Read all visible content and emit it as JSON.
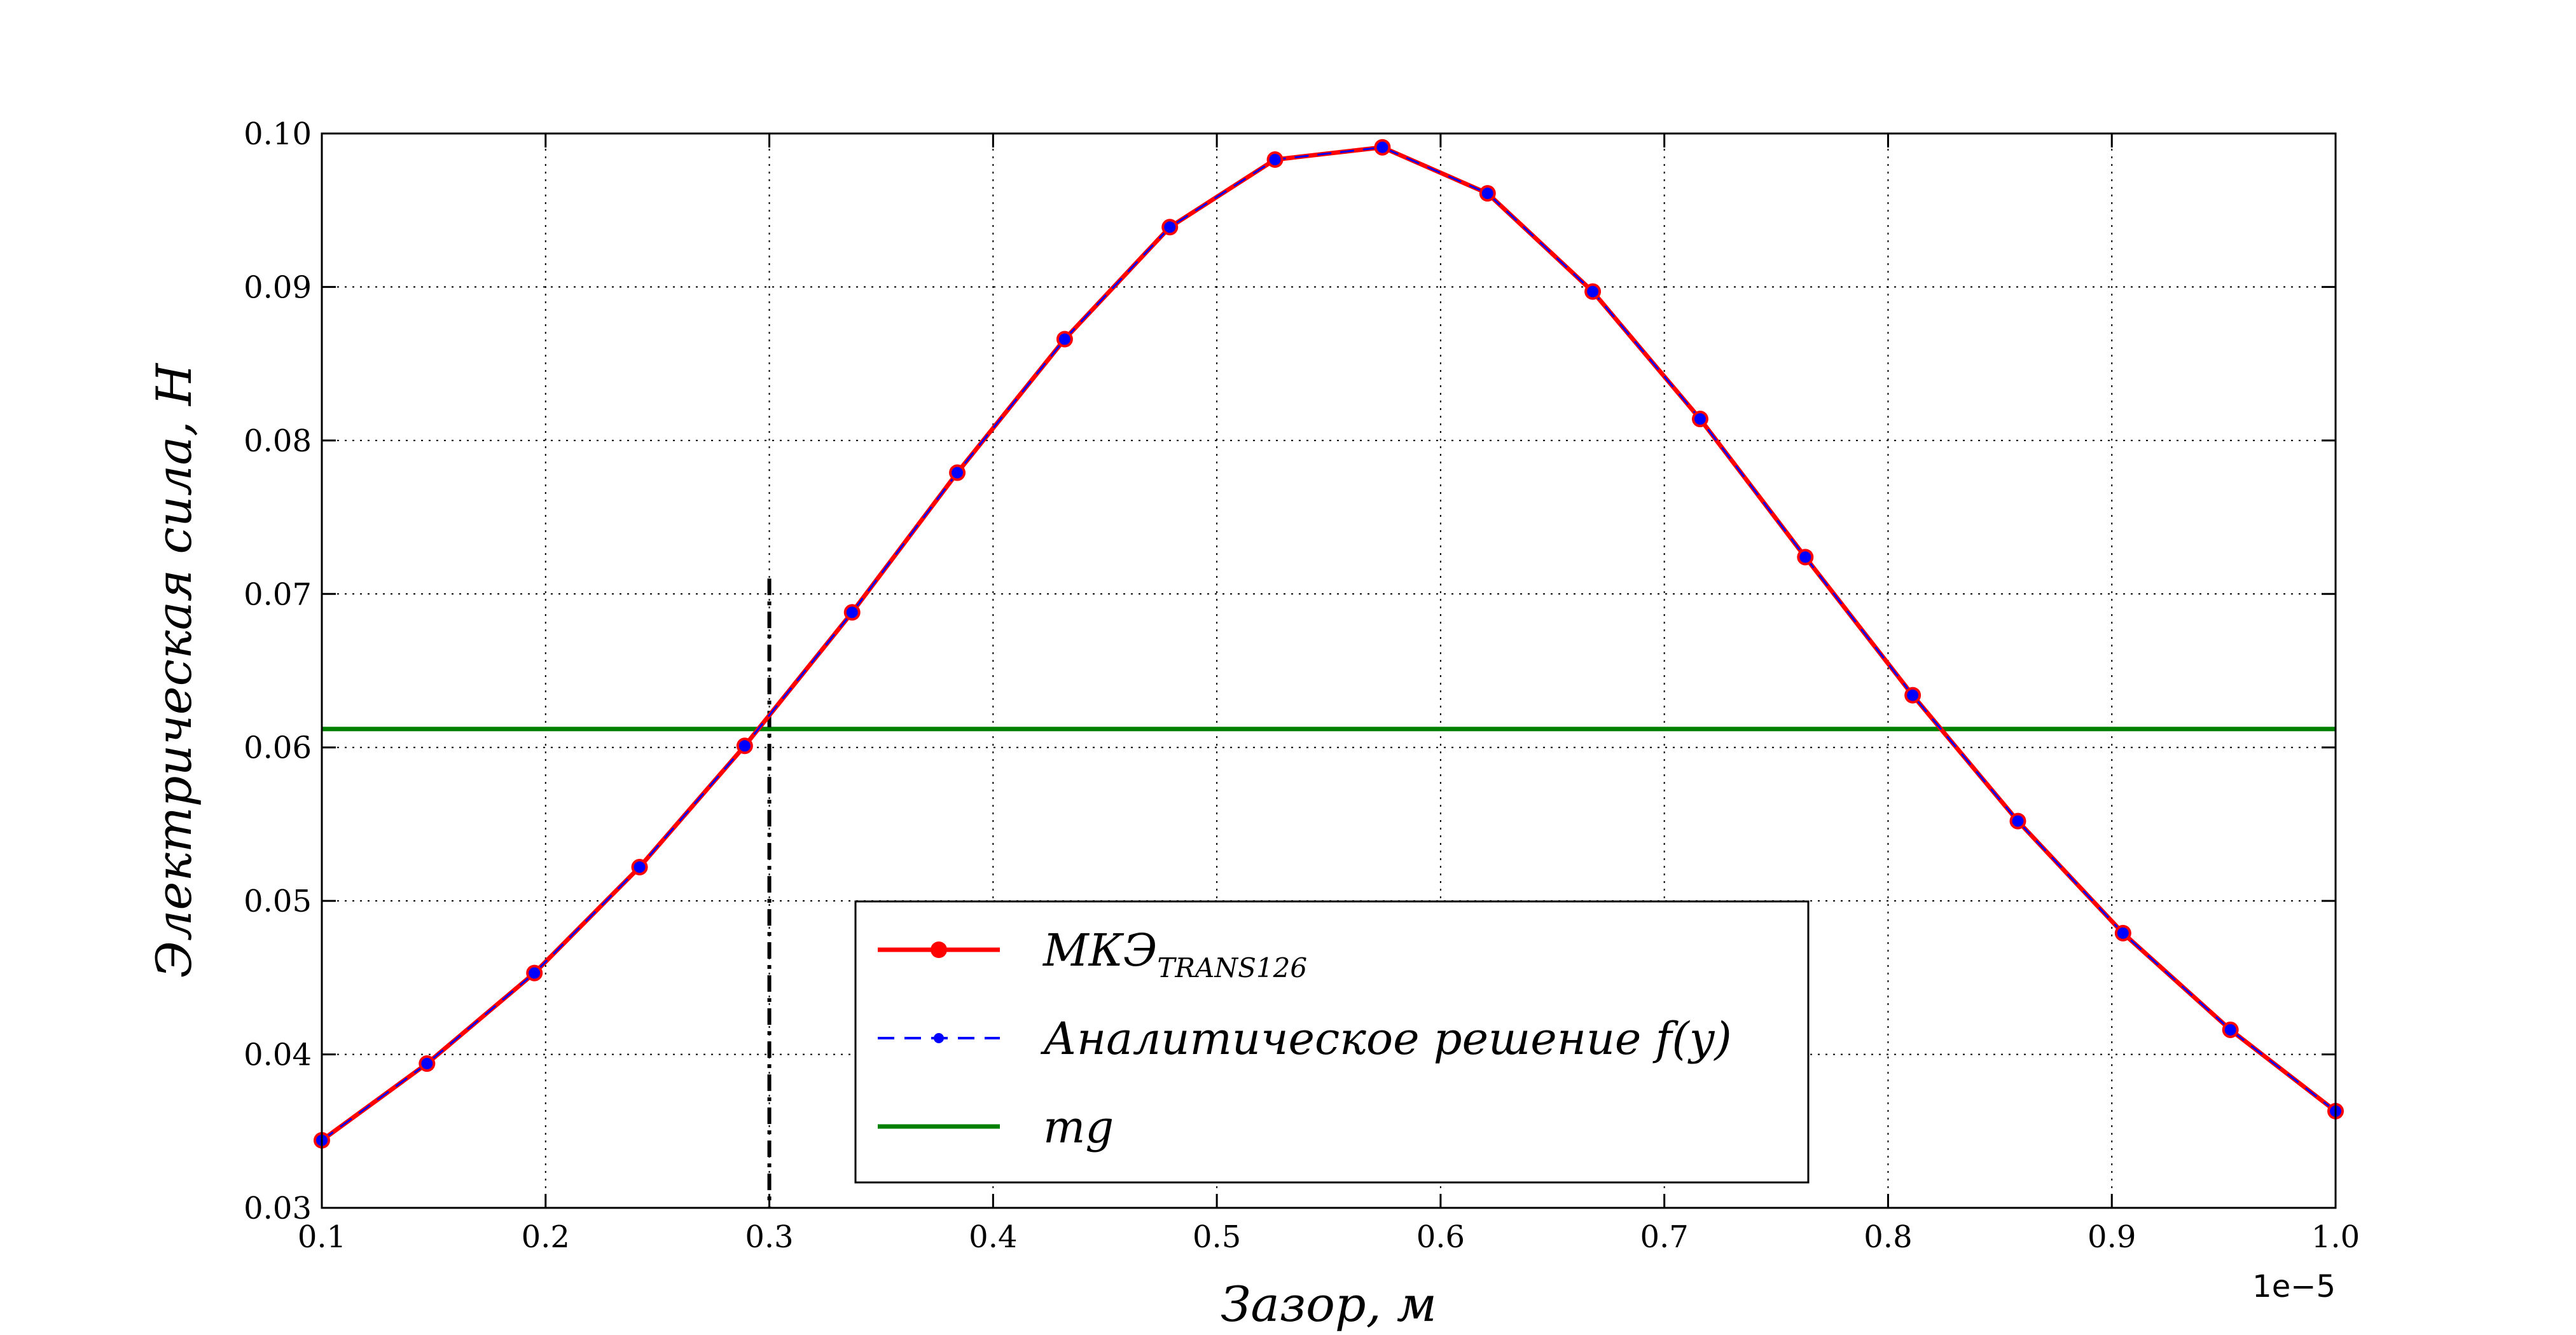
{
  "chart_data": {
    "type": "line",
    "title": "",
    "xlabel": "Зазор,  м",
    "ylabel": "Электрическая сила,  Н",
    "x_offset_label": "1e−5",
    "xlim": [
      0.1,
      1.0
    ],
    "ylim": [
      0.03,
      0.1
    ],
    "xticks": [
      "0.1",
      "0.2",
      "0.3",
      "0.4",
      "0.5",
      "0.6",
      "0.7",
      "0.8",
      "0.9",
      "1.0"
    ],
    "yticks": [
      "0.03",
      "0.04",
      "0.05",
      "0.06",
      "0.07",
      "0.08",
      "0.09",
      "0.10"
    ],
    "grid": true,
    "legend_position": "lower center",
    "x": [
      0.1,
      0.147,
      0.195,
      0.242,
      0.289,
      0.337,
      0.384,
      0.432,
      0.479,
      0.526,
      0.574,
      0.621,
      0.668,
      0.716,
      0.763,
      0.811,
      0.858,
      0.905,
      0.953,
      1.0
    ],
    "series": [
      {
        "name": "МКЭ",
        "name_subscript": "TRANS126",
        "color": "#ff0000",
        "style": "solid-circle-markers",
        "values": [
          0.0344,
          0.0394,
          0.0453,
          0.0522,
          0.0601,
          0.0688,
          0.0779,
          0.0866,
          0.0939,
          0.0983,
          0.0991,
          0.0961,
          0.0897,
          0.0814,
          0.0724,
          0.0634,
          0.0552,
          0.0479,
          0.0416,
          0.0363
        ]
      },
      {
        "name": "Аналитическое решение  f(y)",
        "color": "#0000ff",
        "style": "dashed-dot-markers",
        "values": [
          0.0344,
          0.0394,
          0.0453,
          0.0522,
          0.0601,
          0.0688,
          0.0779,
          0.0866,
          0.0939,
          0.0983,
          0.0991,
          0.0961,
          0.0897,
          0.0814,
          0.0724,
          0.0634,
          0.0552,
          0.0479,
          0.0416,
          0.0363
        ]
      },
      {
        "name": "mg",
        "color": "#008000",
        "style": "horizontal-line",
        "value": 0.0612
      }
    ],
    "vline": {
      "x": 0.3,
      "y_top": 0.071,
      "color": "#000000",
      "style": "dash-dot"
    }
  }
}
